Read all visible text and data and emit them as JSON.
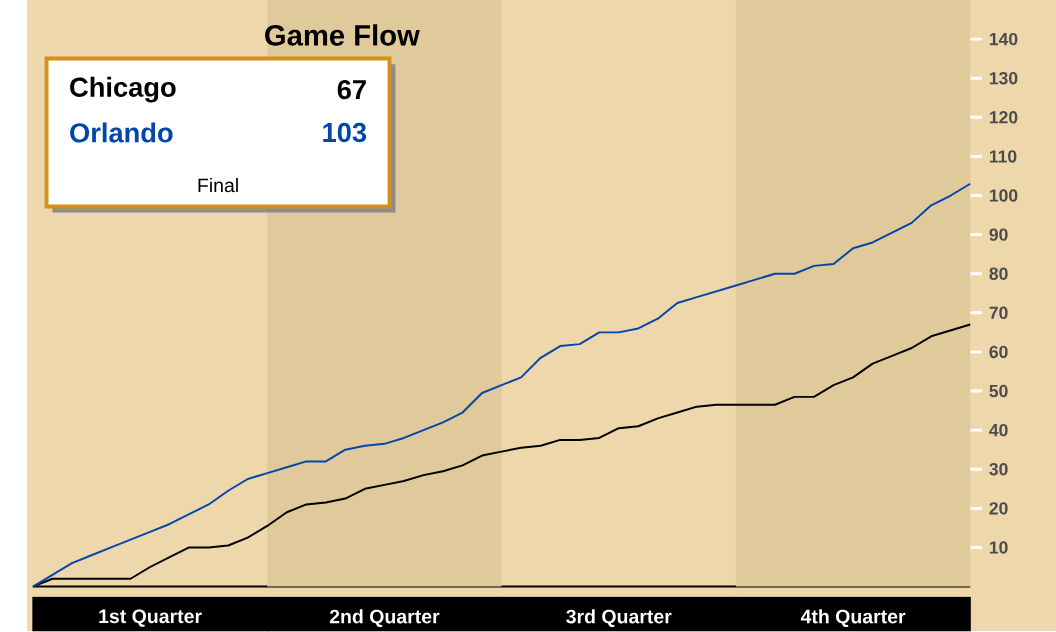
{
  "chart_data": {
    "type": "line",
    "title": "Game Flow",
    "categories": [
      null,
      null,
      null,
      null,
      null,
      null,
      "1st Quarter",
      null,
      null,
      null,
      null,
      null,
      null,
      null,
      null,
      null,
      null,
      null,
      "2nd Quarter",
      null,
      null,
      null,
      null,
      null,
      null,
      null,
      null,
      null,
      null,
      null,
      "3rd Quarter",
      null,
      null,
      null,
      null,
      null,
      null,
      null,
      null,
      null,
      null,
      null,
      "4th Quarter",
      null,
      null,
      null,
      null,
      null,
      null
    ],
    "ylim": [
      0,
      150
    ],
    "yticks": [
      10,
      20,
      30,
      40,
      50,
      60,
      70,
      80,
      90,
      100,
      110,
      120,
      130,
      140
    ],
    "legend": "top left",
    "line_style": "solid",
    "annotations": [
      "67",
      "103",
      "Final"
    ],
    "series": [
      {
        "name": "Chicago",
        "color": "#000000",
        "values": [
          0,
          2,
          2,
          2,
          2,
          2,
          5,
          7.5,
          10,
          10,
          10.5,
          12.5,
          15.5,
          19,
          21,
          21.5,
          22.5,
          25,
          26,
          27,
          28.5,
          29.5,
          31,
          33.5,
          34.5,
          35.5,
          36,
          37.5,
          37.5,
          38,
          40.5,
          41,
          43,
          44.5,
          46,
          46.5,
          46.5,
          46.5,
          46.5,
          48.5,
          48.5,
          51.5,
          53.5,
          57,
          59,
          61,
          64,
          65.5,
          67
        ]
      },
      {
        "name": "Orlando",
        "color": "#0047ab",
        "values": [
          0,
          3,
          6,
          8,
          10,
          12,
          14,
          16,
          18.5,
          21,
          24.5,
          27.5,
          29,
          30.5,
          32,
          32,
          35,
          36,
          36.5,
          38,
          40,
          42,
          44.5,
          49.5,
          51.5,
          53.5,
          58.5,
          61.5,
          62,
          65,
          65,
          66,
          68.5,
          72.5,
          74,
          75.5,
          77,
          78.5,
          80,
          80,
          82,
          82.5,
          86.5,
          88,
          90.5,
          93,
          97.5,
          100,
          103
        ]
      }
    ]
  }
}
